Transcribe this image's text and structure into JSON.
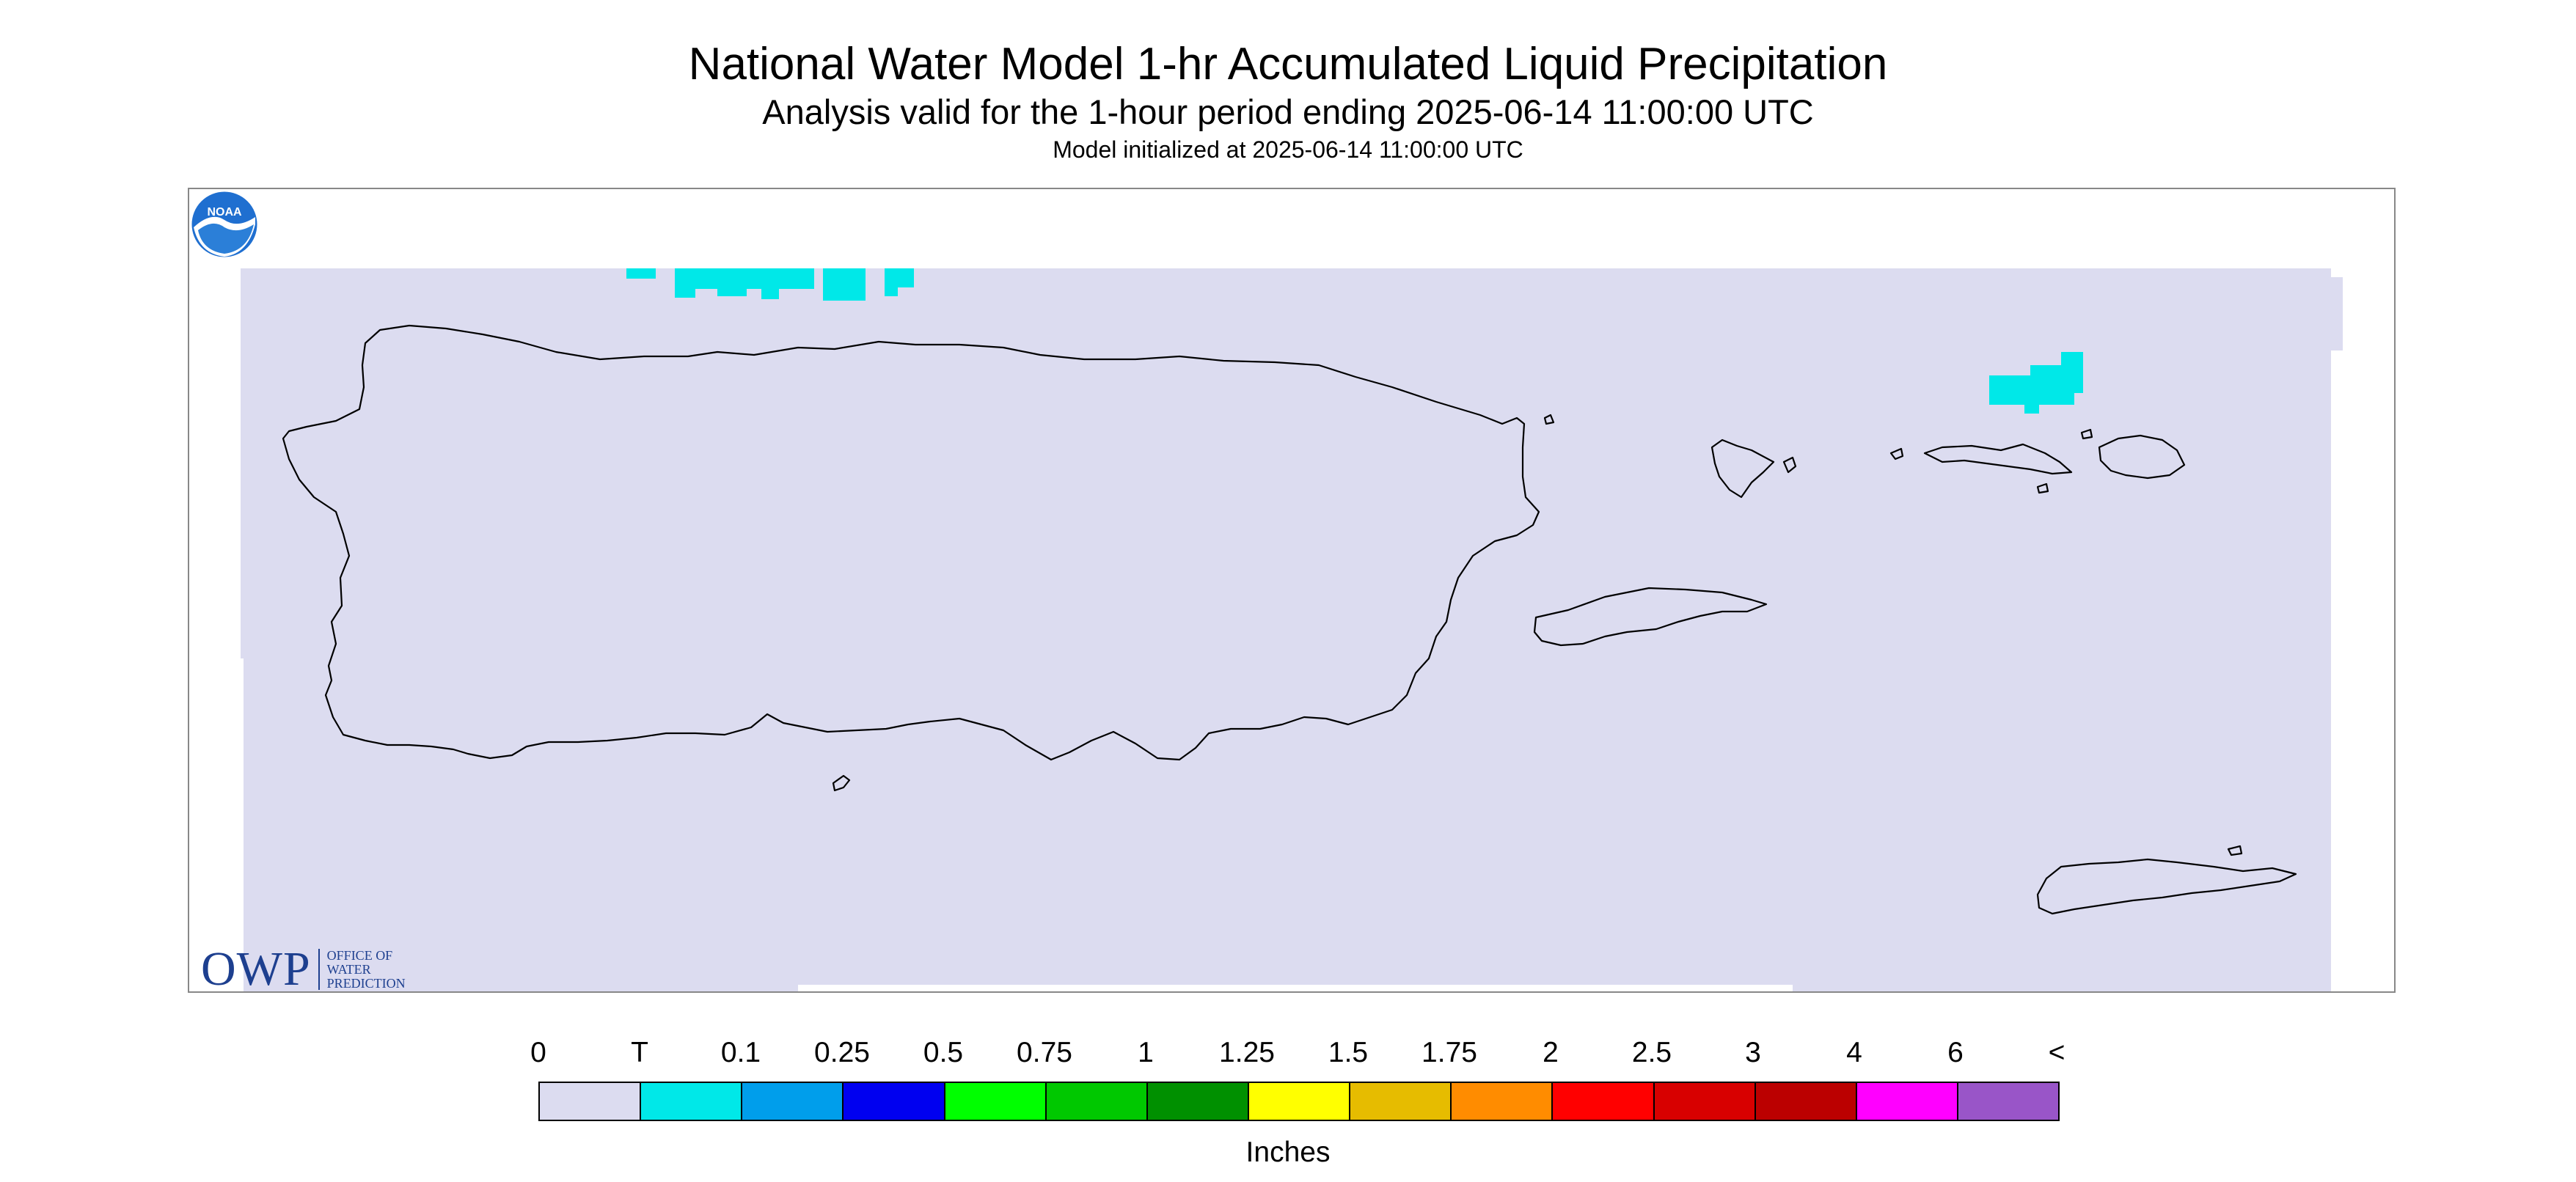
{
  "header": {
    "title": "National Water Model 1-hr Accumulated Liquid Precipitation",
    "subtitle": "Analysis valid for the 1-hour period ending 2025-06-14 11:00:00 UTC",
    "init": "Model initialized at 2025-06-14 11:00:00 UTC"
  },
  "map": {
    "domain_color": "#dcdcf0",
    "outline_color": "#000000",
    "trace_color": "#00e8e8",
    "islands": [
      "puerto-rico",
      "vieques",
      "culebra",
      "st-thomas",
      "st-john",
      "st-croix",
      "isla-caja-de-muertos"
    ]
  },
  "logos": {
    "owp_mark": "OWP",
    "owp_text": "Office of Water Prediction",
    "noaa_text": "NOAA"
  },
  "colorbar": {
    "labels": [
      "0",
      "T",
      "0.1",
      "0.25",
      "0.5",
      "0.75",
      "1",
      "1.25",
      "1.5",
      "1.75",
      "2",
      "2.5",
      "3",
      "4",
      "6",
      "<"
    ],
    "colors": [
      "#dcdcf0",
      "#00e8e8",
      "#009eeb",
      "#0000f0",
      "#00ff00",
      "#00c800",
      "#009000",
      "#ffff00",
      "#e6bc00",
      "#ff8c00",
      "#ff0000",
      "#d80000",
      "#bb0000",
      "#ff00ff",
      "#9955c8"
    ],
    "units": "Inches"
  }
}
